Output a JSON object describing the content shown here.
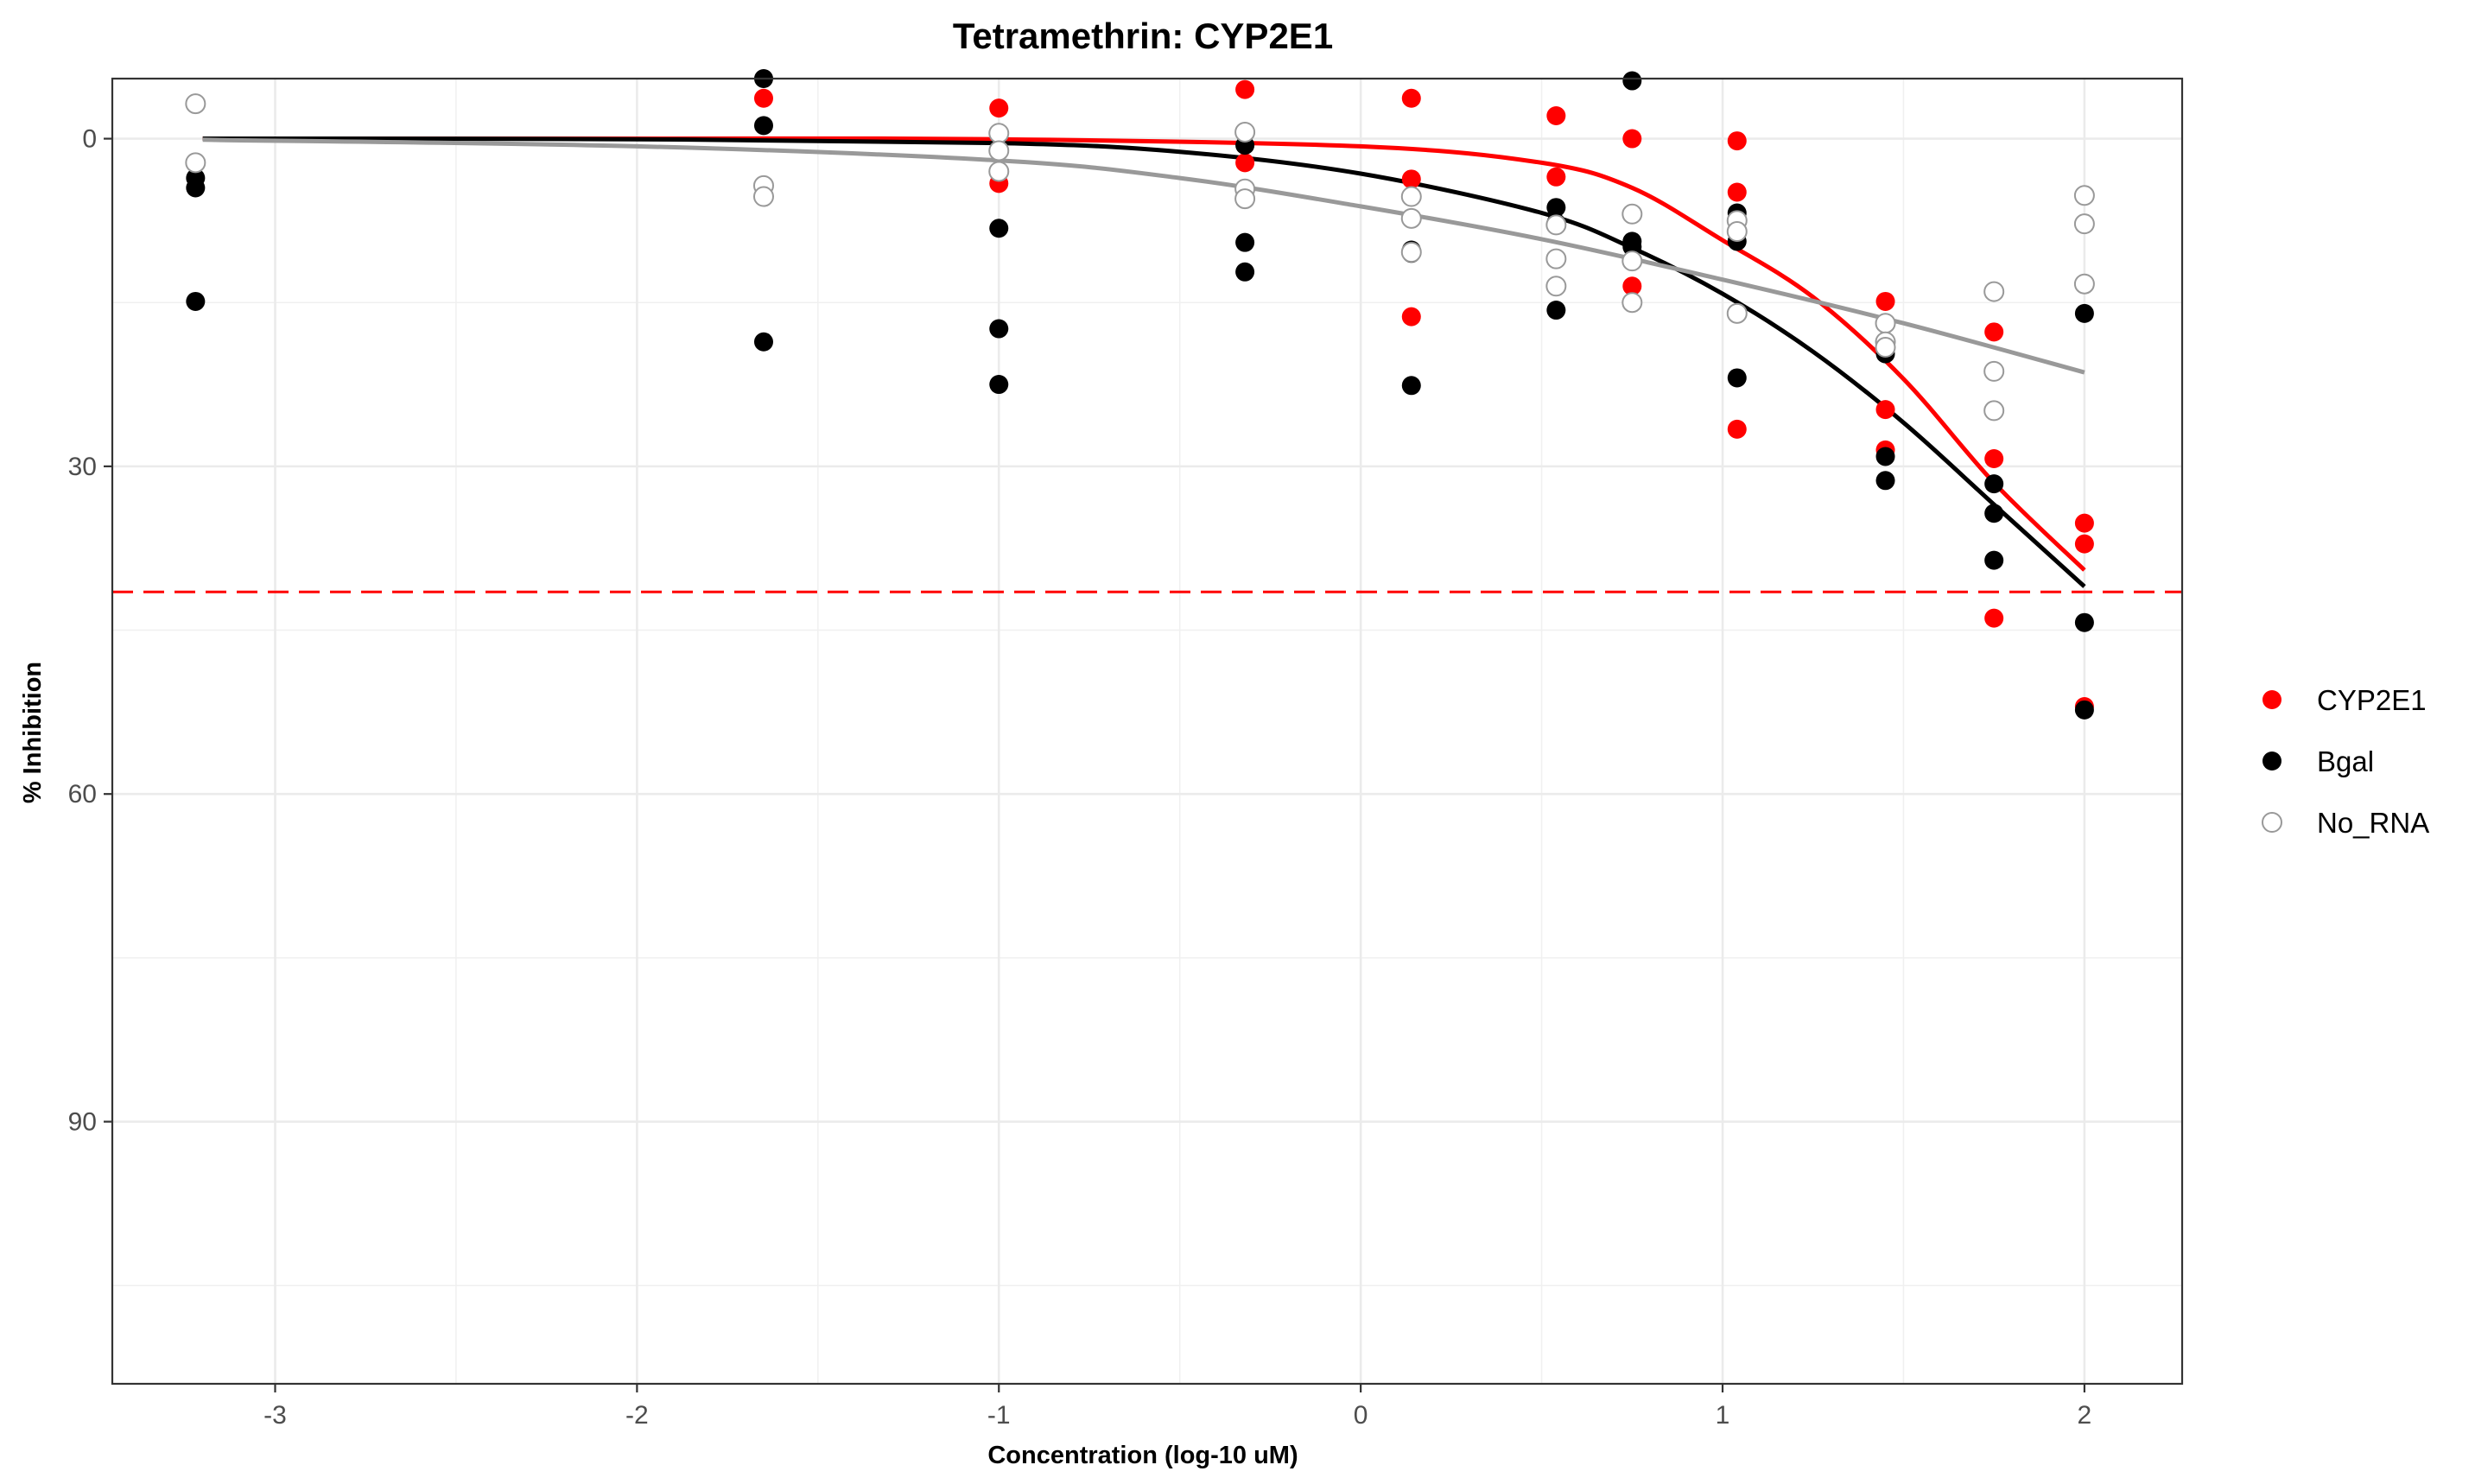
{
  "chart_data": {
    "type": "scatter",
    "title": "Tetramethrin: CYP2E1",
    "xlabel": "Concentration (log-10 uM)",
    "ylabel": "% Inhibition",
    "xlim": [
      -3.45,
      2.27
    ],
    "ylim": [
      -5.5,
      114
    ],
    "y_reversed": true,
    "x_ticks": [
      -3,
      -2,
      -1,
      0,
      1,
      2
    ],
    "x_tick_labels": [
      "-3",
      "-2",
      "-1",
      "0",
      "1",
      "2"
    ],
    "y_ticks": [
      0,
      30,
      60,
      90
    ],
    "y_tick_labels": [
      "0",
      "30",
      "60",
      "90"
    ],
    "grid": true,
    "legend_position": "right",
    "reference_line": {
      "y": 41.5,
      "style": "dashed",
      "color": "#ff0000"
    },
    "series": [
      {
        "name": "CYP2E1",
        "color": "#ff0000",
        "marker": "filled-circle",
        "points": [
          [
            -1.65,
            -3.7
          ],
          [
            -1.0,
            -2.8
          ],
          [
            -1.0,
            4.1
          ],
          [
            -0.32,
            -4.5
          ],
          [
            -0.32,
            2.2
          ],
          [
            0.14,
            -3.7
          ],
          [
            0.14,
            3.7
          ],
          [
            0.14,
            16.3
          ],
          [
            0.54,
            -2.1
          ],
          [
            0.54,
            3.5
          ],
          [
            0.75,
            0.0
          ],
          [
            0.75,
            13.5
          ],
          [
            0.75,
            15.0
          ],
          [
            1.04,
            0.2
          ],
          [
            1.04,
            4.9
          ],
          [
            1.04,
            26.6
          ],
          [
            1.45,
            14.9
          ],
          [
            1.45,
            24.8
          ],
          [
            1.45,
            28.5
          ],
          [
            1.75,
            17.7
          ],
          [
            1.75,
            29.3
          ],
          [
            1.75,
            43.9
          ],
          [
            2.0,
            35.2
          ],
          [
            2.0,
            37.1
          ],
          [
            2.0,
            52.0
          ]
        ],
        "curve": [
          [
            -3.2,
            0.0
          ],
          [
            -2.0,
            0.0
          ],
          [
            -1.0,
            0.05
          ],
          [
            0.0,
            0.7
          ],
          [
            0.5,
            2.2
          ],
          [
            0.75,
            4.5
          ],
          [
            1.0,
            9.3
          ],
          [
            1.25,
            14.5
          ],
          [
            1.5,
            22.0
          ],
          [
            1.75,
            31.5
          ],
          [
            2.0,
            39.5
          ]
        ]
      },
      {
        "name": "Bgal",
        "color": "#000000",
        "marker": "filled-circle",
        "points": [
          [
            -3.22,
            3.6
          ],
          [
            -3.22,
            4.5
          ],
          [
            -3.22,
            14.9
          ],
          [
            -1.65,
            -5.5
          ],
          [
            -1.65,
            -1.2
          ],
          [
            -1.65,
            18.6
          ],
          [
            -1.0,
            8.2
          ],
          [
            -1.0,
            17.4
          ],
          [
            -1.0,
            22.5
          ],
          [
            -0.32,
            0.6
          ],
          [
            -0.32,
            9.5
          ],
          [
            -0.32,
            12.2
          ],
          [
            0.14,
            10.2
          ],
          [
            0.14,
            10.5
          ],
          [
            0.14,
            22.6
          ],
          [
            0.54,
            6.3
          ],
          [
            0.54,
            7.7
          ],
          [
            0.54,
            15.7
          ],
          [
            0.75,
            -5.3
          ],
          [
            0.75,
            9.4
          ],
          [
            0.75,
            9.9
          ],
          [
            1.04,
            6.8
          ],
          [
            1.04,
            7.6
          ],
          [
            1.04,
            9.4
          ],
          [
            1.04,
            21.9
          ],
          [
            1.45,
            19.7
          ],
          [
            1.45,
            29.1
          ],
          [
            1.45,
            31.3
          ],
          [
            1.75,
            31.6
          ],
          [
            1.75,
            34.3
          ],
          [
            1.75,
            38.6
          ],
          [
            2.0,
            16.0
          ],
          [
            2.0,
            44.3
          ],
          [
            2.0,
            52.3
          ]
        ],
        "curve": [
          [
            -3.2,
            0.0
          ],
          [
            -2.0,
            0.05
          ],
          [
            -1.0,
            0.4
          ],
          [
            -0.5,
            1.2
          ],
          [
            0.0,
            3.2
          ],
          [
            0.5,
            6.8
          ],
          [
            0.75,
            10.0
          ],
          [
            1.0,
            14.2
          ],
          [
            1.25,
            19.5
          ],
          [
            1.5,
            26.0
          ],
          [
            1.75,
            33.5
          ],
          [
            2.0,
            41.0
          ]
        ]
      },
      {
        "name": "No_RNA",
        "color": "#999999",
        "marker": "open-circle",
        "points": [
          [
            -3.22,
            -3.2
          ],
          [
            -3.22,
            2.2
          ],
          [
            -1.65,
            4.3
          ],
          [
            -1.65,
            5.3
          ],
          [
            -1.0,
            -0.5
          ],
          [
            -1.0,
            1.1
          ],
          [
            -1.0,
            3.0
          ],
          [
            -0.32,
            -0.6
          ],
          [
            -0.32,
            4.6
          ],
          [
            -0.32,
            5.5
          ],
          [
            0.14,
            5.3
          ],
          [
            0.14,
            7.3
          ],
          [
            0.14,
            10.4
          ],
          [
            0.54,
            7.9
          ],
          [
            0.54,
            11.0
          ],
          [
            0.54,
            13.5
          ],
          [
            0.75,
            6.9
          ],
          [
            0.75,
            11.2
          ],
          [
            0.75,
            15.0
          ],
          [
            1.04,
            7.5
          ],
          [
            1.04,
            8.5
          ],
          [
            1.04,
            16.0
          ],
          [
            1.45,
            16.9
          ],
          [
            1.45,
            18.6
          ],
          [
            1.45,
            19.1
          ],
          [
            1.75,
            14.0
          ],
          [
            1.75,
            21.3
          ],
          [
            1.75,
            24.9
          ],
          [
            2.0,
            5.2
          ],
          [
            2.0,
            7.8
          ],
          [
            2.0,
            13.3
          ]
        ],
        "curve": [
          [
            -3.2,
            0.1
          ],
          [
            -2.0,
            0.7
          ],
          [
            -1.0,
            2.0
          ],
          [
            -0.5,
            3.6
          ],
          [
            0.0,
            6.2
          ],
          [
            0.5,
            9.2
          ],
          [
            1.0,
            12.9
          ],
          [
            1.5,
            16.9
          ],
          [
            2.0,
            21.4
          ]
        ]
      }
    ]
  }
}
